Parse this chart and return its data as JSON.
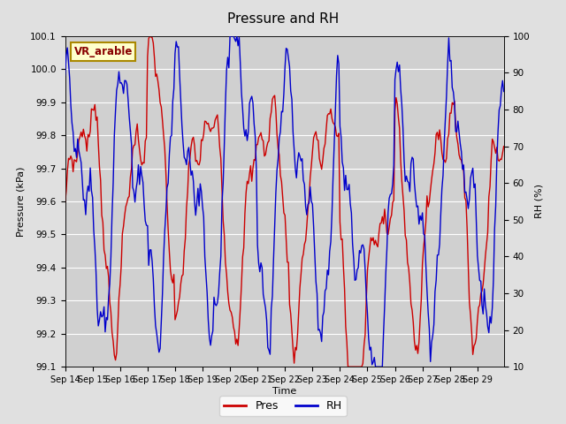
{
  "title": "Pressure and RH",
  "xlabel": "Time",
  "ylabel_left": "Pressure (kPa)",
  "ylabel_right": "RH (%)",
  "site_label": "VR_arable",
  "ylim_left": [
    99.1,
    100.1
  ],
  "ylim_right": [
    10,
    100
  ],
  "yticks_left": [
    99.1,
    99.2,
    99.3,
    99.4,
    99.5,
    99.6,
    99.7,
    99.8,
    99.9,
    100.0,
    100.1
  ],
  "yticks_right": [
    10,
    20,
    30,
    40,
    50,
    60,
    70,
    80,
    90,
    100
  ],
  "xtick_labels": [
    "Sep 14",
    "Sep 15",
    "Sep 16",
    "Sep 17",
    "Sep 18",
    "Sep 19",
    "Sep 20",
    "Sep 21",
    "Sep 22",
    "Sep 23",
    "Sep 24",
    "Sep 25",
    "Sep 26",
    "Sep 27",
    "Sep 28",
    "Sep 29"
  ],
  "legend_labels": [
    "Pres",
    "RH"
  ],
  "pres_color": "#cc0000",
  "rh_color": "#0000cc",
  "bg_color": "#e0e0e0",
  "plot_bg_color": "#d0d0d0",
  "grid_color": "#ffffff",
  "site_label_bg": "#ffffcc",
  "site_label_border": "#aa8800",
  "site_label_color": "#880000",
  "n_days": 16,
  "pts_per_day": 24
}
